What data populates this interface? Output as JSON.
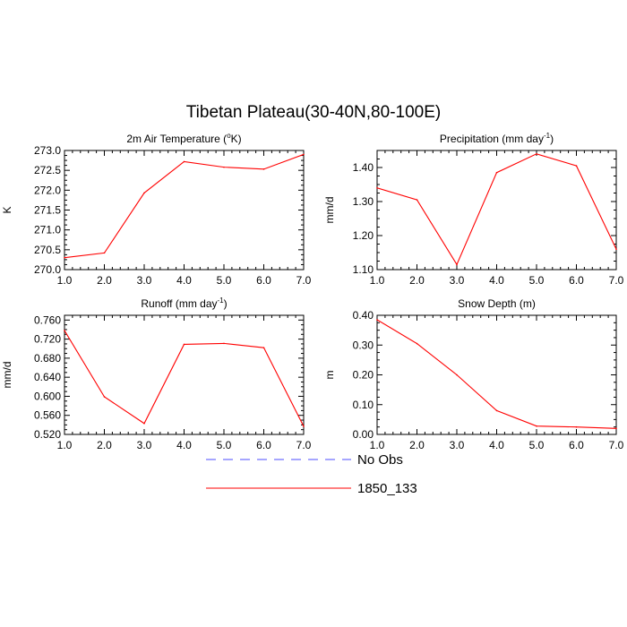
{
  "figure": {
    "title": "Tibetan Plateau(30-40N,80-100E)"
  },
  "chart_data": [
    {
      "type": "line",
      "title": "2m Air Temperature (",
      "title_sup": "o",
      "title_suffix": "K)",
      "xlabel": "",
      "ylabel": "K",
      "xlim": [
        1.0,
        7.0
      ],
      "ylim": [
        270.0,
        273.0
      ],
      "xticks": [
        "1.0",
        "2.0",
        "3.0",
        "4.0",
        "5.0",
        "6.0",
        "7.0"
      ],
      "yticks": [
        "270.0",
        "270.5",
        "271.0",
        "271.5",
        "272.0",
        "272.5",
        "273.0"
      ],
      "x": [
        1,
        2,
        3,
        4,
        5,
        6,
        7
      ],
      "series": [
        {
          "name": "1850_133",
          "color": "#ff0000",
          "values": [
            270.3,
            270.42,
            271.93,
            272.72,
            272.58,
            272.53,
            272.9
          ]
        }
      ]
    },
    {
      "type": "line",
      "title": "Precipitation (mm day",
      "title_sup": "-1",
      "title_suffix": ")",
      "xlabel": "",
      "ylabel": "mm/d",
      "xlim": [
        1.0,
        7.0
      ],
      "ylim": [
        1.1,
        1.45
      ],
      "xticks": [
        "1.0",
        "2.0",
        "3.0",
        "4.0",
        "5.0",
        "6.0",
        "7.0"
      ],
      "yticks": [
        "1.10",
        "1.20",
        "1.30",
        "1.40"
      ],
      "x": [
        1,
        2,
        3,
        4,
        5,
        6,
        7
      ],
      "series": [
        {
          "name": "1850_133",
          "color": "#ff0000",
          "values": [
            1.34,
            1.305,
            1.115,
            1.385,
            1.44,
            1.405,
            1.16
          ]
        }
      ]
    },
    {
      "type": "line",
      "title": "Runoff (mm day",
      "title_sup": "-1",
      "title_suffix": ")",
      "xlabel": "",
      "ylabel": "mm/d",
      "xlim": [
        1.0,
        7.0
      ],
      "ylim": [
        0.52,
        0.77
      ],
      "xticks": [
        "1.0",
        "2.0",
        "3.0",
        "4.0",
        "5.0",
        "6.0",
        "7.0"
      ],
      "yticks": [
        "0.520",
        "0.560",
        "0.600",
        "0.640",
        "0.680",
        "0.720",
        "0.760"
      ],
      "x": [
        1,
        2,
        3,
        4,
        5,
        6,
        7
      ],
      "series": [
        {
          "name": "1850_133",
          "color": "#ff0000",
          "values": [
            0.738,
            0.599,
            0.543,
            0.709,
            0.711,
            0.702,
            0.537
          ]
        }
      ]
    },
    {
      "type": "line",
      "title": "Snow Depth (m)",
      "title_sup": "",
      "title_suffix": "",
      "xlabel": "",
      "ylabel": "m",
      "xlim": [
        1.0,
        7.0
      ],
      "ylim": [
        0.0,
        0.4
      ],
      "xticks": [
        "1.0",
        "2.0",
        "3.0",
        "4.0",
        "5.0",
        "6.0",
        "7.0"
      ],
      "yticks": [
        "0.00",
        "0.10",
        "0.20",
        "0.30",
        "0.40"
      ],
      "x": [
        1,
        2,
        3,
        4,
        5,
        6,
        7
      ],
      "series": [
        {
          "name": "1850_133",
          "color": "#ff0000",
          "values": [
            0.385,
            0.305,
            0.2,
            0.08,
            0.028,
            0.025,
            0.02
          ]
        }
      ]
    }
  ],
  "legend": {
    "placement": "bottom-center",
    "items": [
      {
        "label": "No Obs",
        "color": "#4d4dff",
        "dash": "dashed"
      },
      {
        "label": "1850_133",
        "color": "#ff0000",
        "dash": "solid"
      }
    ]
  }
}
